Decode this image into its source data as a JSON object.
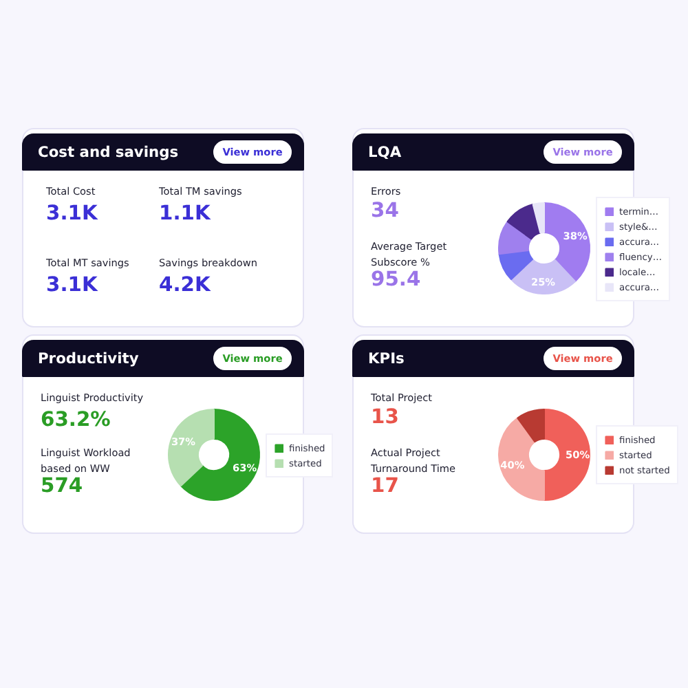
{
  "chart_data": [
    {
      "type": "other",
      "title": "Cost and savings",
      "annotations": [
        "View more",
        "Total Cost",
        "3.1K",
        "Total TM savings",
        "1.1K",
        "Total MT savings",
        "3.1K",
        "Savings breakdown",
        "4.2K"
      ]
    },
    {
      "type": "donut",
      "title": "LQA",
      "annotations": [
        "View more",
        "Errors",
        "34",
        "Average Target Subscore %",
        "95.4"
      ],
      "categories": [
        "termin…",
        "style&…",
        "accura…",
        "fluency…",
        "locale…",
        "accura…"
      ],
      "values": [
        38,
        25,
        10,
        12,
        11,
        4
      ],
      "value_labels": [
        "38%",
        "25%",
        null,
        null,
        null,
        null
      ],
      "colors": [
        "#a07cf0",
        "#c9c0f5",
        "#6a6cf0",
        "#9f80ee",
        "#4b2a8c",
        "#e8e6f8"
      ],
      "legend": "right"
    },
    {
      "type": "donut",
      "title": "Productivity",
      "annotations": [
        "View more",
        "Linguist Productivity",
        "63.2%",
        "Linguist Workload based on WW",
        "574"
      ],
      "categories": [
        "finished",
        "started"
      ],
      "values": [
        63,
        37
      ],
      "value_labels": [
        "63%",
        "37%"
      ],
      "colors": [
        "#2ca329",
        "#b6dfb1"
      ],
      "legend": "right"
    },
    {
      "type": "donut",
      "title": "KPIs",
      "annotations": [
        "View more",
        "Total Project",
        "13",
        "Actual Project Turnaround Time",
        "17"
      ],
      "categories": [
        "finished",
        "started",
        "not started"
      ],
      "values": [
        50,
        40,
        10
      ],
      "value_labels": [
        "50%",
        "40%",
        null
      ],
      "colors": [
        "#f0605a",
        "#f6aaa5",
        "#b83a32"
      ],
      "legend": "right"
    }
  ]
}
